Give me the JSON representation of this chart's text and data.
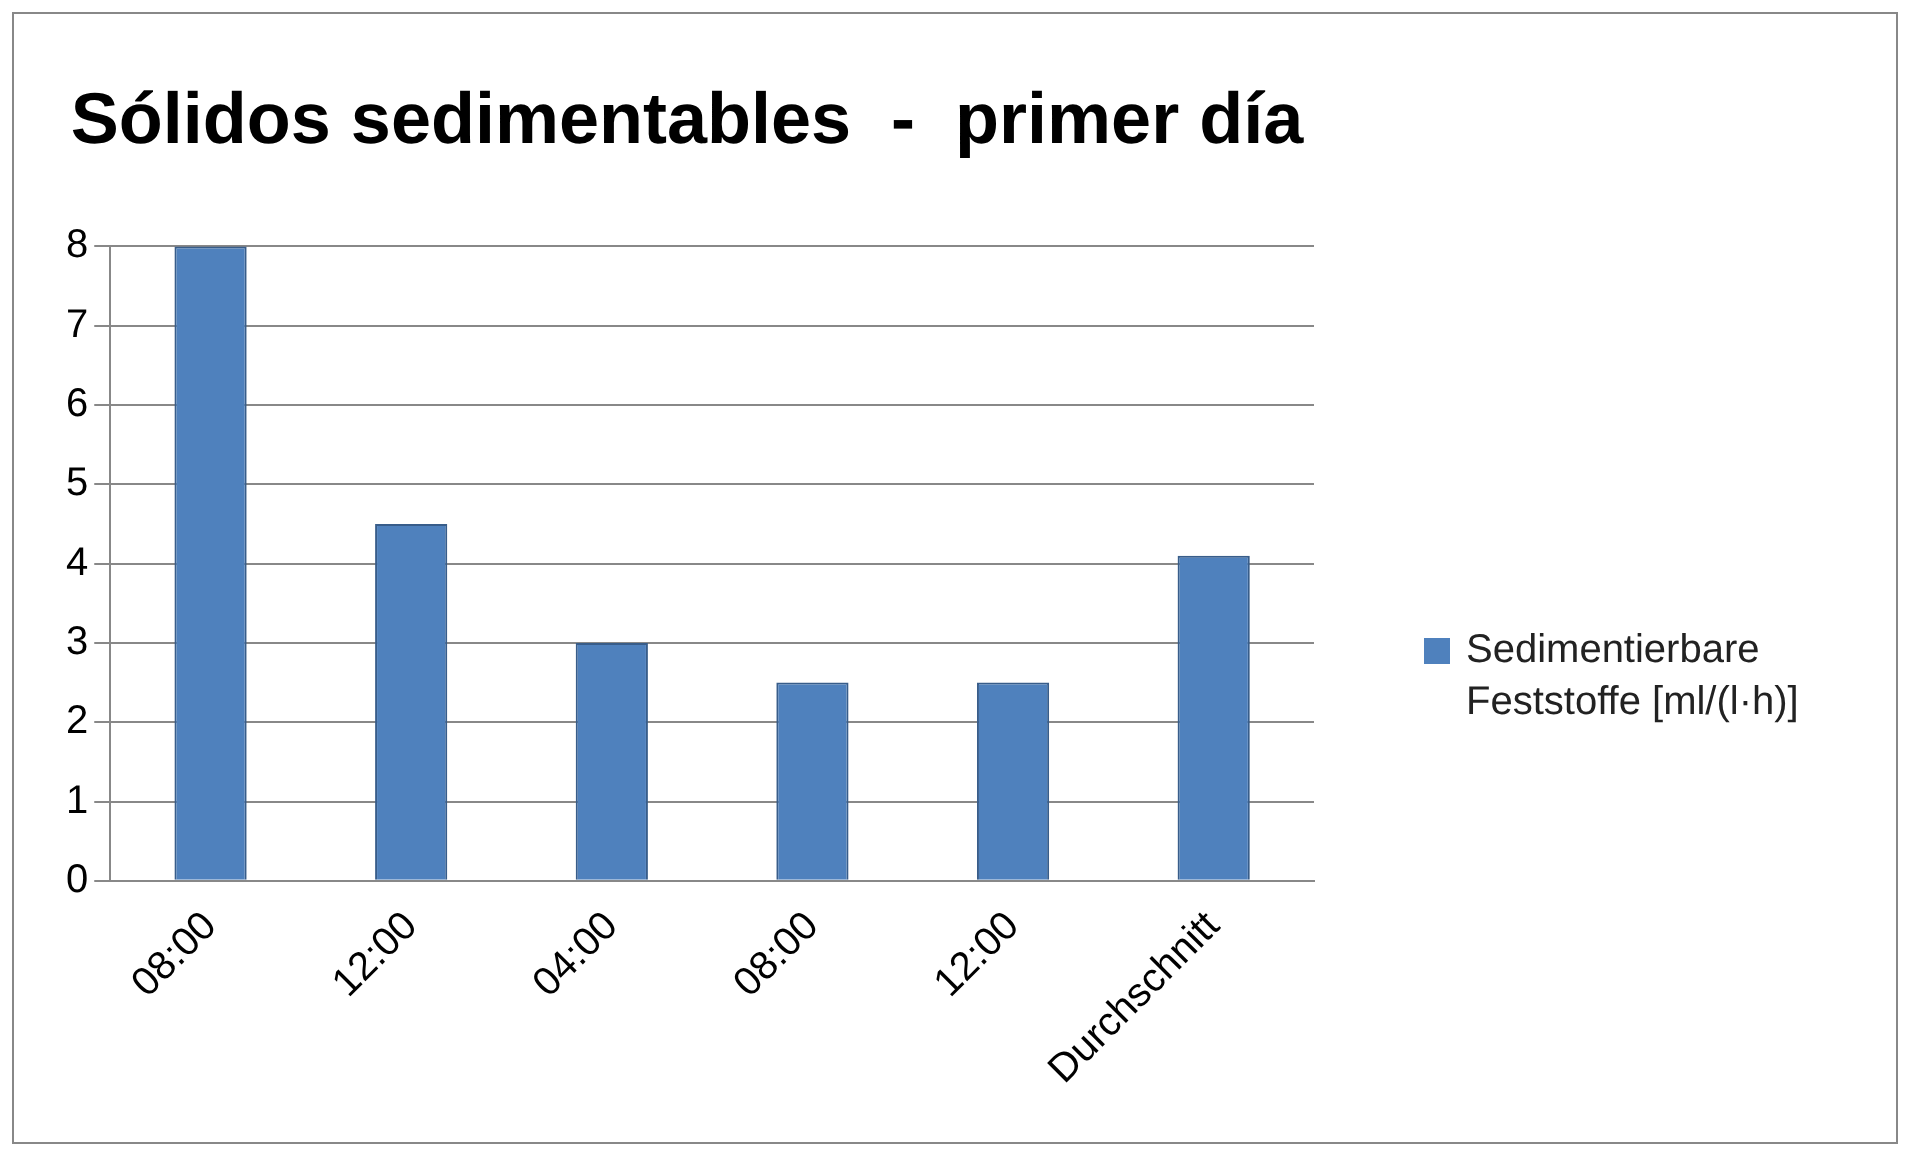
{
  "chart_data": {
    "type": "bar",
    "title": "Sólidos sedimentables  -  primer día",
    "categories": [
      "08:00",
      "12:00",
      "04:00",
      "08:00",
      "12:00",
      "Durchschnitt"
    ],
    "series": [
      {
        "name": "Sedimentierbare Feststoffe [ml/(l·h)]",
        "color": "#4f81bd",
        "values": [
          8,
          4.5,
          3,
          2.5,
          2.5,
          4.1
        ]
      }
    ],
    "ylim": [
      0,
      8
    ],
    "yticks": [
      0,
      1,
      2,
      3,
      4,
      5,
      6,
      7,
      8
    ],
    "grid": "y",
    "legend": "right"
  }
}
